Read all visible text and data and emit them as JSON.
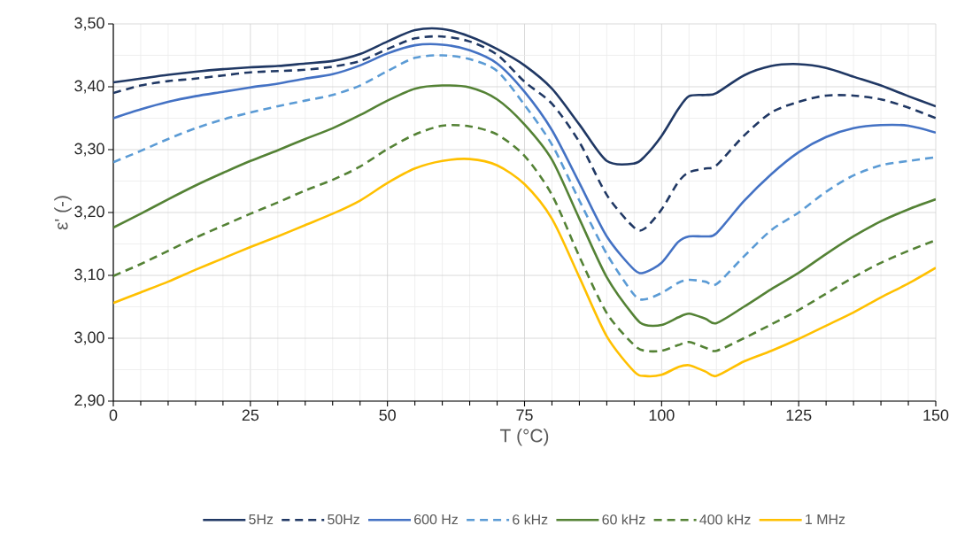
{
  "chart_data": {
    "type": "line",
    "xlabel": "T (°C)",
    "ylabel": "ε' (-)",
    "x": [
      0,
      5,
      10,
      15,
      20,
      25,
      30,
      35,
      40,
      45,
      50,
      55,
      60,
      65,
      70,
      75,
      80,
      85,
      90,
      95,
      97,
      100,
      103,
      105,
      108,
      110,
      115,
      120,
      125,
      130,
      135,
      140,
      145,
      150
    ],
    "xlim": [
      0,
      150
    ],
    "xticks": [
      0,
      25,
      50,
      75,
      100,
      125,
      150
    ],
    "ylim": [
      2.9,
      3.5
    ],
    "yticks": [
      {
        "value": 2.9,
        "label": "2,90"
      },
      {
        "value": 3.0,
        "label": "3,00"
      },
      {
        "value": 3.1,
        "label": "3,10"
      },
      {
        "value": 3.2,
        "label": "3,20"
      },
      {
        "value": 3.3,
        "label": "3,30"
      },
      {
        "value": 3.4,
        "label": "3,40"
      },
      {
        "value": 3.5,
        "label": "3,50"
      }
    ],
    "grid": true,
    "legend": "bottom",
    "marker": "none",
    "series": [
      {
        "name": "5Hz",
        "color": "#203864",
        "line_style": "solid",
        "values": [
          3.407,
          3.413,
          3.419,
          3.424,
          3.428,
          3.431,
          3.433,
          3.437,
          3.441,
          3.452,
          3.472,
          3.49,
          3.492,
          3.48,
          3.46,
          3.434,
          3.397,
          3.34,
          3.282,
          3.278,
          3.29,
          3.322,
          3.364,
          3.385,
          3.387,
          3.39,
          3.418,
          3.433,
          3.436,
          3.43,
          3.416,
          3.402,
          3.385,
          3.369
        ]
      },
      {
        "name": "50Hz",
        "color": "#203864",
        "line_style": "dashed",
        "values": [
          3.39,
          3.402,
          3.409,
          3.413,
          3.418,
          3.423,
          3.425,
          3.427,
          3.432,
          3.441,
          3.46,
          3.477,
          3.48,
          3.472,
          3.451,
          3.408,
          3.373,
          3.312,
          3.228,
          3.176,
          3.175,
          3.205,
          3.248,
          3.264,
          3.27,
          3.275,
          3.322,
          3.359,
          3.376,
          3.386,
          3.386,
          3.38,
          3.367,
          3.35
        ]
      },
      {
        "name": "600 Hz",
        "color": "#4472c4",
        "line_style": "solid",
        "values": [
          3.35,
          3.364,
          3.376,
          3.385,
          3.392,
          3.399,
          3.405,
          3.413,
          3.42,
          3.434,
          3.453,
          3.466,
          3.467,
          3.458,
          3.437,
          3.392,
          3.331,
          3.247,
          3.162,
          3.109,
          3.105,
          3.12,
          3.153,
          3.162,
          3.162,
          3.167,
          3.218,
          3.261,
          3.296,
          3.32,
          3.334,
          3.339,
          3.338,
          3.327
        ]
      },
      {
        "name": "6 kHz",
        "color": "#5b9bd5",
        "line_style": "dashed",
        "values": [
          3.28,
          3.298,
          3.317,
          3.334,
          3.348,
          3.359,
          3.369,
          3.378,
          3.387,
          3.402,
          3.425,
          3.446,
          3.45,
          3.444,
          3.425,
          3.371,
          3.308,
          3.219,
          3.134,
          3.069,
          3.062,
          3.072,
          3.088,
          3.093,
          3.09,
          3.086,
          3.13,
          3.172,
          3.2,
          3.233,
          3.259,
          3.275,
          3.282,
          3.288
        ]
      },
      {
        "name": "60 kHz",
        "color": "#548235",
        "line_style": "solid",
        "values": [
          3.176,
          3.198,
          3.221,
          3.243,
          3.263,
          3.282,
          3.299,
          3.317,
          3.334,
          3.355,
          3.378,
          3.397,
          3.402,
          3.399,
          3.38,
          3.34,
          3.284,
          3.19,
          3.097,
          3.035,
          3.021,
          3.021,
          3.033,
          3.039,
          3.031,
          3.024,
          3.05,
          3.078,
          3.104,
          3.134,
          3.162,
          3.186,
          3.205,
          3.221
        ]
      },
      {
        "name": "400 kHz",
        "color": "#548235",
        "line_style": "dashed",
        "values": [
          3.099,
          3.118,
          3.139,
          3.16,
          3.179,
          3.198,
          3.216,
          3.235,
          3.252,
          3.273,
          3.301,
          3.324,
          3.338,
          3.337,
          3.324,
          3.29,
          3.228,
          3.13,
          3.04,
          2.989,
          2.98,
          2.98,
          2.989,
          2.994,
          2.985,
          2.98,
          3.0,
          3.022,
          3.045,
          3.071,
          3.097,
          3.12,
          3.139,
          3.156
        ]
      },
      {
        "name": "1 MHz",
        "color": "#ffc000",
        "line_style": "solid",
        "values": [
          3.056,
          3.073,
          3.09,
          3.109,
          3.127,
          3.145,
          3.162,
          3.18,
          3.198,
          3.219,
          3.247,
          3.27,
          3.282,
          3.285,
          3.275,
          3.245,
          3.19,
          3.097,
          3.003,
          2.947,
          2.94,
          2.942,
          2.954,
          2.957,
          2.947,
          2.94,
          2.963,
          2.98,
          2.999,
          3.02,
          3.041,
          3.065,
          3.087,
          3.112
        ]
      }
    ]
  }
}
